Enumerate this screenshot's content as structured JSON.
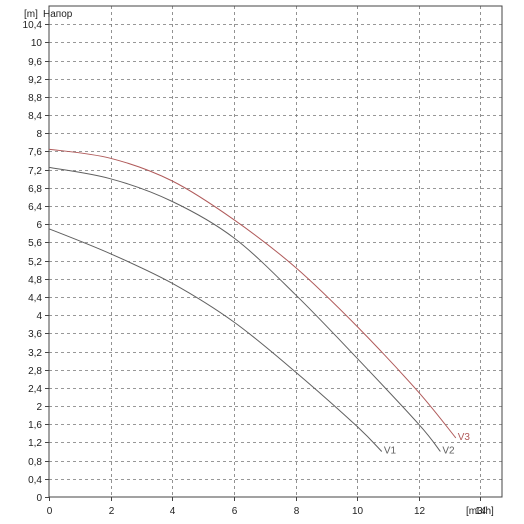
{
  "chart_data": {
    "type": "line",
    "ylabel_unit": "[m]",
    "ylabel": "Напор",
    "xlabel": "[m3/h]",
    "xlim": [
      0,
      14.7
    ],
    "ylim": [
      0,
      10.8
    ],
    "xticks": [
      0,
      2,
      4,
      6,
      8,
      10,
      12,
      14
    ],
    "yticks": [
      0,
      0.4,
      0.8,
      1.2,
      1.6,
      2,
      2.4,
      2.8,
      3.2,
      3.6,
      4,
      4.4,
      4.8,
      5.2,
      5.6,
      6,
      6.4,
      6.8,
      7.2,
      7.6,
      8,
      8.4,
      8.8,
      9.2,
      9.6,
      10,
      10.4
    ],
    "xtick_labels": [
      "0",
      "2",
      "4",
      "6",
      "8",
      "10",
      "12",
      "14"
    ],
    "ytick_labels": [
      "0",
      "0,4",
      "0,8",
      "1,2",
      "1,6",
      "2",
      "2,4",
      "2,8",
      "3,2",
      "3,6",
      "4",
      "4,4",
      "4,8",
      "5,2",
      "5,6",
      "6",
      "6,4",
      "6,8",
      "7,2",
      "7,6",
      "8",
      "8,4",
      "8,8",
      "9,2",
      "9,6",
      "10",
      "10,4"
    ],
    "grid": true,
    "series": [
      {
        "name": "V1",
        "color": "#606060",
        "points": [
          [
            0,
            5.9
          ],
          [
            2,
            5.35
          ],
          [
            4,
            4.7
          ],
          [
            6,
            3.85
          ],
          [
            8,
            2.75
          ],
          [
            10,
            1.55
          ],
          [
            10.8,
            1.0
          ]
        ]
      },
      {
        "name": "V2",
        "color": "#606060",
        "points": [
          [
            0,
            7.25
          ],
          [
            2,
            7.0
          ],
          [
            4,
            6.5
          ],
          [
            6,
            5.7
          ],
          [
            8,
            4.45
          ],
          [
            10,
            3.05
          ],
          [
            12,
            1.6
          ],
          [
            12.7,
            1.0
          ]
        ]
      },
      {
        "name": "V3",
        "color": "#b05a5a",
        "points": [
          [
            0,
            7.65
          ],
          [
            2,
            7.45
          ],
          [
            4,
            6.95
          ],
          [
            6,
            6.1
          ],
          [
            8,
            5.05
          ],
          [
            10,
            3.75
          ],
          [
            12,
            2.3
          ],
          [
            13.2,
            1.3
          ]
        ]
      }
    ]
  }
}
